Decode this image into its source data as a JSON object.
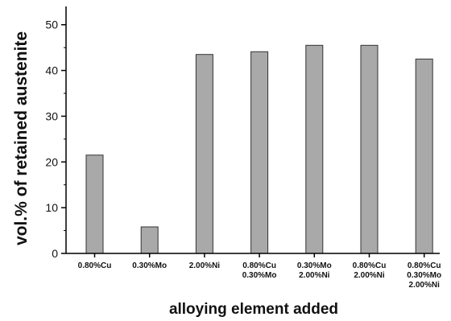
{
  "chart_data": {
    "type": "bar",
    "categories": [
      [
        "0.80%Cu"
      ],
      [
        "0.30%Mo"
      ],
      [
        "2.00%Ni"
      ],
      [
        "0.80%Cu",
        "0.30%Mo"
      ],
      [
        "0.30%Mo",
        "2.00%Ni"
      ],
      [
        "0.80%Cu",
        "2.00%Ni"
      ],
      [
        "0.80%Cu",
        "0.30%Mo",
        "2.00%Ni"
      ]
    ],
    "values": [
      21.5,
      5.8,
      43.5,
      44.1,
      45.5,
      45.5,
      42.5
    ],
    "xlabel": "alloying element added",
    "ylabel": "vol.% of retained austenite",
    "ylim": [
      0,
      54
    ],
    "yticks": [
      0,
      10,
      20,
      30,
      40,
      50
    ],
    "grid": false,
    "colors": {
      "bar_fill": "#a9a9a9",
      "bar_stroke": "#333333",
      "axis": "#000000"
    }
  }
}
